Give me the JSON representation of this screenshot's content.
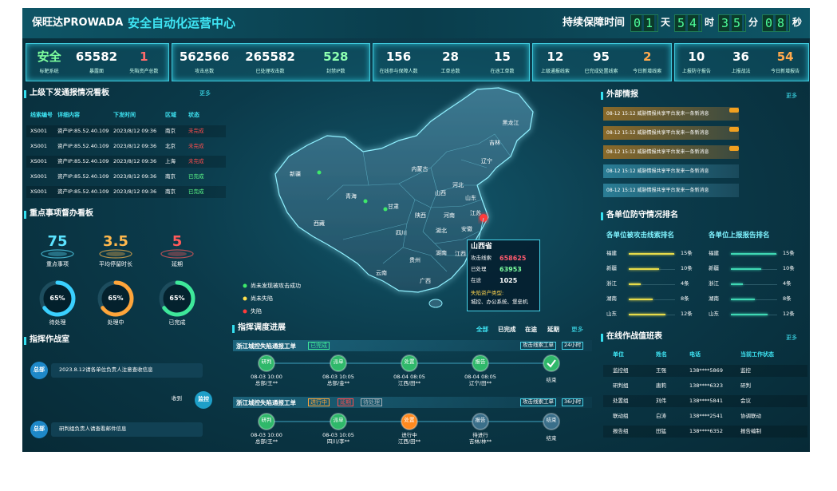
{
  "header": {
    "brand": "保旺达PROWADA",
    "title": "安全自动化运营中心",
    "uptime_label": "持续保障时间",
    "uptime": [
      {
        "value": "01",
        "unit": "天"
      },
      {
        "value": "54",
        "unit": "时"
      },
      {
        "value": "35",
        "unit": "分"
      },
      {
        "value": "08",
        "unit": "秒"
      }
    ]
  },
  "stats": [
    [
      {
        "value": "安全",
        "label": "标靶系统",
        "color": "#7dff9e"
      },
      {
        "value": "65582",
        "label": "暴露面",
        "color": "#ffffff"
      },
      {
        "value": "1",
        "label": "失陷资产总数",
        "color": "#ff6b6b"
      }
    ],
    [
      {
        "value": "562566",
        "label": "攻击总数",
        "color": "#ffffff"
      },
      {
        "value": "265582",
        "label": "已处理攻击数",
        "color": "#ffffff"
      },
      {
        "value": "528",
        "label": "封禁IP数",
        "color": "#8dffb0"
      }
    ],
    [
      {
        "value": "156",
        "label": "在线参与保障人数",
        "color": "#ffffff"
      },
      {
        "value": "28",
        "label": "工单总数",
        "color": "#ffffff"
      },
      {
        "value": "15",
        "label": "在途工单数",
        "color": "#ffffff"
      }
    ],
    [
      {
        "value": "12",
        "label": "上级通报线索",
        "color": "#ffffff"
      },
      {
        "value": "95",
        "label": "已完成处置线索",
        "color": "#ffffff"
      },
      {
        "value": "2",
        "label": "今日新增线索",
        "color": "#ffa94d"
      }
    ],
    [
      {
        "value": "10",
        "label": "上报防守报告",
        "color": "#ffffff"
      },
      {
        "value": "36",
        "label": "上报战法",
        "color": "#ffffff"
      },
      {
        "value": "54",
        "label": "今日新增报告",
        "color": "#ffa94d"
      }
    ]
  ],
  "notice_board": {
    "title": "上级下发通报情况看板",
    "more": "更多",
    "columns": [
      "线索编号",
      "详细内容",
      "下发时间",
      "区域",
      "状态"
    ],
    "rows": [
      {
        "id": "XS001",
        "detail": "资产IP:85.52.40.109",
        "time": "2023/8/12 09:36",
        "region": "南京",
        "status": "未完成",
        "status_color": "#ff4d4d"
      },
      {
        "id": "XS001",
        "detail": "资产IP:85.52.40.109",
        "time": "2023/8/12 09:36",
        "region": "北京",
        "status": "未完成",
        "status_color": "#ff4d4d"
      },
      {
        "id": "XS001",
        "detail": "资产IP:85.52.40.109",
        "time": "2023/8/12 09:36",
        "region": "上海",
        "status": "未完成",
        "status_color": "#ff4d4d"
      },
      {
        "id": "XS001",
        "detail": "资产IP:85.52.40.109",
        "time": "2023/8/12 09:36",
        "region": "南京",
        "status": "已完成",
        "status_color": "#5dff8a"
      },
      {
        "id": "XS001",
        "detail": "资产IP:85.52.40.109",
        "time": "2023/8/12 09:36",
        "region": "南京",
        "status": "已完成",
        "status_color": "#5dff8a"
      }
    ]
  },
  "supervision": {
    "title": "重点事项督办看板",
    "metrics": [
      {
        "value": "75",
        "label": "重点事项",
        "color": "#5be3ff"
      },
      {
        "value": "3.5",
        "label": "平均停留时长",
        "color": "#ffb84d"
      },
      {
        "value": "5",
        "label": "延期",
        "color": "#ff5a5a"
      }
    ],
    "rings": [
      {
        "value": 65,
        "label": "65%",
        "name": "待处理",
        "color": "#3ad0ff"
      },
      {
        "value": 65,
        "label": "65%",
        "name": "处理中",
        "color": "#ffa53a"
      },
      {
        "value": 65,
        "label": "65%",
        "name": "已完成",
        "color": "#3ee89a"
      }
    ]
  },
  "war_room": {
    "title": "指挥作战室",
    "messages": [
      {
        "sender": "总部",
        "text": "2023.8.12请各单位负责人注意查收信息",
        "side": "left"
      },
      {
        "sender": "监控",
        "text": "收到",
        "side": "right"
      },
      {
        "sender": "总部",
        "text": "研判组负责人请查看邮件信息",
        "side": "left"
      }
    ]
  },
  "map": {
    "provinces": [
      "黑龙江",
      "吉林",
      "辽宁",
      "内蒙古",
      "新疆",
      "青海",
      "西藏",
      "甘肃",
      "河北",
      "山西",
      "山东",
      "陕西",
      "河南",
      "江苏",
      "安徽",
      "湖北",
      "四川",
      "贵州",
      "云南",
      "湖南",
      "广西",
      "江西"
    ],
    "tooltip": {
      "title": "山西省",
      "rows": [
        {
          "label": "攻击线索",
          "value": "658625",
          "color": "#ff5a6e"
        },
        {
          "label": "已处理",
          "value": "63953",
          "color": "#7dff9e"
        },
        {
          "label": "在途",
          "value": "1025",
          "color": "#ffffff"
        }
      ],
      "assets_label": "失陷资产类型:",
      "assets": "城控、办公系统、堡垒机"
    },
    "legend": [
      {
        "text": "尚未发现被攻击成功",
        "color": "#3ee86a"
      },
      {
        "text": "尚未失陷",
        "color": "#ffe14d"
      },
      {
        "text": "失陷",
        "color": "#ff3b3b"
      }
    ]
  },
  "dispatch": {
    "title": "指挥调度进展",
    "tabs": [
      "全部",
      "已完成",
      "在途",
      "延期"
    ],
    "more": "更多",
    "orders": [
      {
        "name": "浙江城控失陷通报工单",
        "statuses": [
          {
            "text": "已完成",
            "color": "#3ee89a"
          }
        ],
        "tags": [
          "攻击线索工单",
          "24小时"
        ],
        "steps": [
          {
            "label": "研判",
            "time": "08-03 10:00",
            "person": "总部/王**",
            "color": "#2fb86a"
          },
          {
            "label": "派单",
            "time": "08-03 10:05",
            "person": "总部/金**",
            "color": "#2fb86a"
          },
          {
            "label": "处置",
            "time": "08-04 08:05",
            "person": "江西/田**",
            "color": "#2fb86a"
          },
          {
            "label": "报告",
            "time": "08-04 08:05",
            "person": "辽宁/田**",
            "color": "#2fb86a"
          },
          {
            "person": "结束",
            "color": "#2fb86a"
          }
        ]
      },
      {
        "name": "浙江城控失陷通报工单",
        "statuses": [
          {
            "text": "进行中",
            "color": "#ffa53a"
          },
          {
            "text": "延期",
            "color": "#ff4d4d"
          },
          {
            "text": "待处理",
            "color": "#a8b3bb"
          }
        ],
        "tags": [
          "攻击线索工单",
          "36小时"
        ],
        "steps": [
          {
            "label": "研判",
            "time": "08-03 10:00",
            "person": "总部/王**",
            "color": "#2fb86a"
          },
          {
            "label": "派单",
            "time": "08-03 10:05",
            "person": "四川/李**",
            "color": "#2fb86a"
          },
          {
            "label": "处置",
            "time": "进行中",
            "person": "江西/田**",
            "color": "#ff8a1f"
          },
          {
            "label": "报告",
            "time": "待进行",
            "person": "吉林/林**",
            "color": "#3a6f8a"
          },
          {
            "label": "结束",
            "person": "结束",
            "color": "#3a6f8a"
          }
        ]
      }
    ]
  },
  "intel": {
    "title": "外部情报",
    "more": "更多",
    "items": [
      {
        "text": "08-12 15:12 威胁情报共享平台发来一条新消息",
        "highlight": true
      },
      {
        "text": "08-12 15:12 威胁情报共享平台发来一条新消息",
        "highlight": true
      },
      {
        "text": "08-12 15:12 威胁情报共享平台发来一条新消息",
        "highlight": true
      },
      {
        "text": "08-12 15:12 威胁情报共享平台发来一条新消息",
        "highlight": false
      },
      {
        "text": "08-12 15:12 威胁情报共享平台发来一条新消息",
        "highlight": false
      }
    ]
  },
  "ranking": {
    "title": "各单位防守情况排名",
    "groups": [
      {
        "title": "各单位被攻击线索排名",
        "color": "#e8dc4a",
        "rows": [
          {
            "name": "福建",
            "value": 15,
            "label": "15条"
          },
          {
            "name": "新疆",
            "value": 10,
            "label": "10条"
          },
          {
            "name": "浙江",
            "value": 4,
            "label": "4条"
          },
          {
            "name": "湖南",
            "value": 8,
            "label": "8条"
          },
          {
            "name": "山东",
            "value": 12,
            "label": "12条"
          }
        ]
      },
      {
        "title": "各单位上报报告排名",
        "color": "#3fd8b4",
        "rows": [
          {
            "name": "福建",
            "value": 15,
            "label": "15条"
          },
          {
            "name": "新疆",
            "value": 10,
            "label": "10条"
          },
          {
            "name": "浙江",
            "value": 4,
            "label": "4条"
          },
          {
            "name": "湖南",
            "value": 8,
            "label": "8条"
          },
          {
            "name": "山东",
            "value": 12,
            "label": "12条"
          }
        ]
      }
    ]
  },
  "duty": {
    "title": "在线作战值班表",
    "more": "更多",
    "columns": [
      "单位",
      "姓名",
      "电话",
      "当前工作状态"
    ],
    "rows": [
      [
        "监控组",
        "王强",
        "138****5869",
        "监控"
      ],
      [
        "研判组",
        "唐莉",
        "138****6323",
        "研判"
      ],
      [
        "处置组",
        "刘伟",
        "138****5841",
        "会议"
      ],
      [
        "联动组",
        "白涛",
        "138****2541",
        "协调联动"
      ],
      [
        "报告组",
        "田猛",
        "138****6352",
        "报告编制"
      ]
    ]
  }
}
